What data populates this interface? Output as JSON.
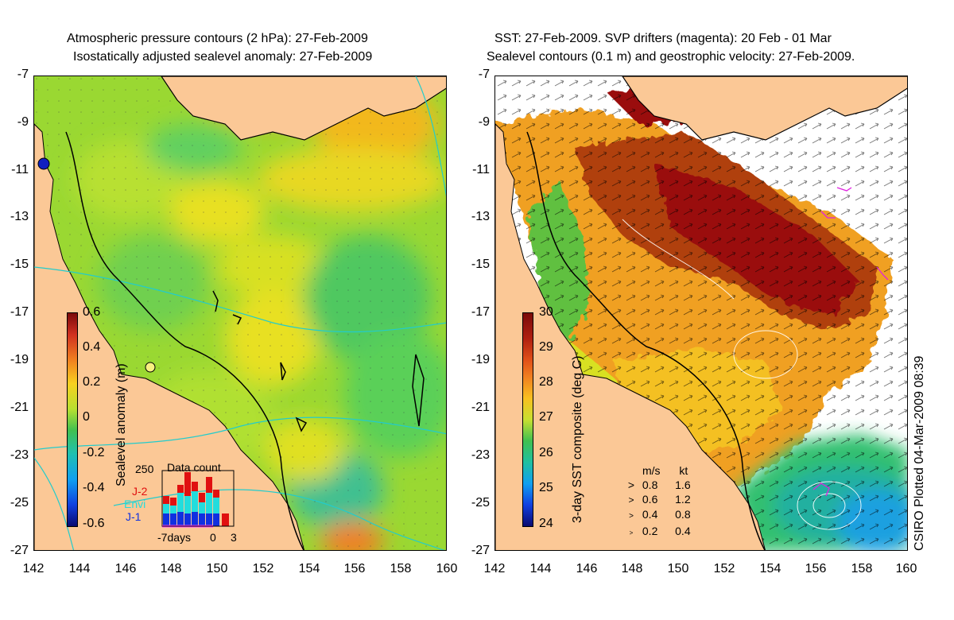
{
  "left_panel": {
    "title_line1": "Atmospheric pressure contours (2 hPa): 27-Feb-2009",
    "title_line2": "Isostatically adjusted sealevel anomaly: 27-Feb-2009",
    "colorbar": {
      "label": "Sealevel anomaly (m)",
      "ticks": [
        "0.6",
        "0.4",
        "0.2",
        "0",
        "-0.2",
        "-0.4",
        "-0.6"
      ]
    },
    "inset": {
      "title": "Data count",
      "ymax_label": "250",
      "legend": [
        {
          "label": "J-2",
          "color": "#e01010"
        },
        {
          "label": "Envi",
          "color": "#22dddd"
        },
        {
          "label": "J-1",
          "color": "#1030e0"
        }
      ],
      "x_labels": [
        "-7days",
        "0",
        "3"
      ]
    }
  },
  "right_panel": {
    "title_line1": "SST: 27-Feb-2009. SVP drifters (magenta): 20 Feb - 01 Mar",
    "title_line2": "Sealevel contours (0.1 m) and geostrophic velocity: 27-Feb-2009.",
    "colorbar": {
      "label": "3-day SST composite (deg C)",
      "ticks": [
        "30",
        "29",
        "28",
        "27",
        "26",
        "25",
        "24"
      ]
    },
    "velocity_key": {
      "header_ms": "m/s",
      "header_kt": "kt",
      "rows": [
        {
          "ms": "0.8",
          "kt": "1.6"
        },
        {
          "ms": "0.6",
          "kt": "1.2"
        },
        {
          "ms": "0.4",
          "kt": "0.8"
        },
        {
          "ms": "0.2",
          "kt": "0.4"
        }
      ]
    }
  },
  "axes": {
    "lat_labels": [
      "-7",
      "-9",
      "-11",
      "-13",
      "-15",
      "-17",
      "-19",
      "-21",
      "-23",
      "-25",
      "-27"
    ],
    "lon_labels": [
      "142",
      "144",
      "146",
      "148",
      "150",
      "152",
      "154",
      "156",
      "158",
      "160"
    ]
  },
  "credit": "CSIRO Plotted 04-Mar-2009 08:39",
  "colors": {
    "land": "#fbc896",
    "coast": "#000000",
    "contour_cyan": "#22cccc"
  }
}
